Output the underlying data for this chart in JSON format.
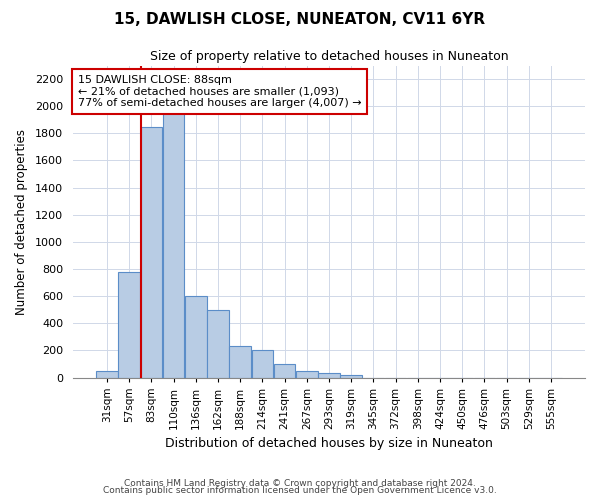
{
  "title": "15, DAWLISH CLOSE, NUNEATON, CV11 6YR",
  "subtitle": "Size of property relative to detached houses in Nuneaton",
  "xlabel": "Distribution of detached houses by size in Nuneaton",
  "ylabel": "Number of detached properties",
  "footer1": "Contains HM Land Registry data © Crown copyright and database right 2024.",
  "footer2": "Contains public sector information licensed under the Open Government Licence v3.0.",
  "categories": [
    "31sqm",
    "57sqm",
    "83sqm",
    "110sqm",
    "136sqm",
    "162sqm",
    "188sqm",
    "214sqm",
    "241sqm",
    "267sqm",
    "293sqm",
    "319sqm",
    "345sqm",
    "372sqm",
    "398sqm",
    "424sqm",
    "450sqm",
    "476sqm",
    "503sqm",
    "529sqm",
    "555sqm"
  ],
  "values": [
    50,
    780,
    1850,
    2050,
    600,
    500,
    230,
    200,
    100,
    50,
    30,
    20,
    0,
    0,
    0,
    0,
    0,
    0,
    0,
    0,
    0
  ],
  "bar_color": "#b8cce4",
  "bar_edge_color": "#5b8dc8",
  "red_line_index": 2,
  "annotation_line1": "15 DAWLISH CLOSE: 88sqm",
  "annotation_line2": "← 21% of detached houses are smaller (1,093)",
  "annotation_line3": "77% of semi-detached houses are larger (4,007) →",
  "annotation_box_color": "#ffffff",
  "annotation_border_color": "#cc0000",
  "ylim": [
    0,
    2300
  ],
  "yticks": [
    0,
    200,
    400,
    600,
    800,
    1000,
    1200,
    1400,
    1600,
    1800,
    2000,
    2200
  ],
  "background_color": "#ffffff",
  "grid_color": "#d0d8e8"
}
